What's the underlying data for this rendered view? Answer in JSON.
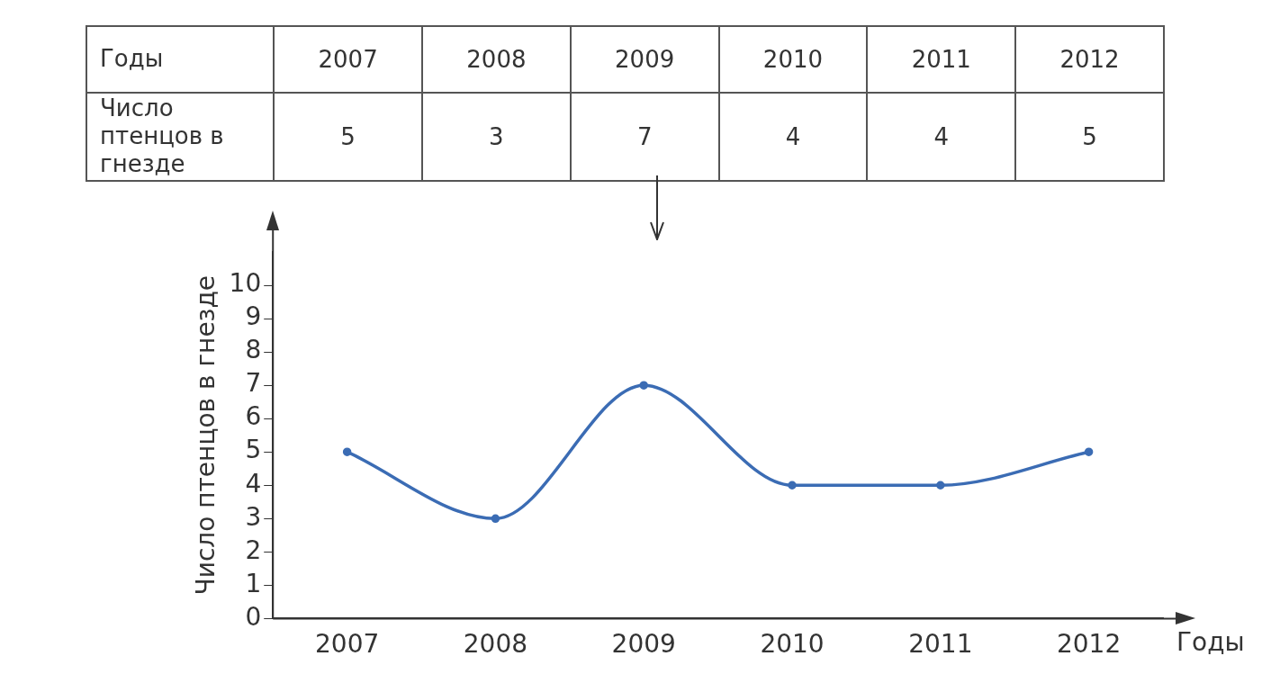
{
  "chart_data": {
    "type": "line",
    "xlabel": "Годы",
    "ylabel": "Число птенцов в гнезде",
    "categories": [
      "2007",
      "2008",
      "2009",
      "2010",
      "2011",
      "2012"
    ],
    "series": [
      {
        "color": "#3b6cb4",
        "values": [
          5,
          3,
          7,
          4,
          4,
          5
        ],
        "value_labels": [
          "5",
          "3",
          "7",
          "4",
          "4",
          "5"
        ]
      }
    ],
    "ylim": [
      0,
      11
    ],
    "yticks": [
      0,
      1,
      2,
      3,
      4,
      5,
      6,
      7,
      8,
      9,
      10
    ],
    "marker": "circle",
    "line_style": "solid",
    "grid": false,
    "legend": false
  }
}
